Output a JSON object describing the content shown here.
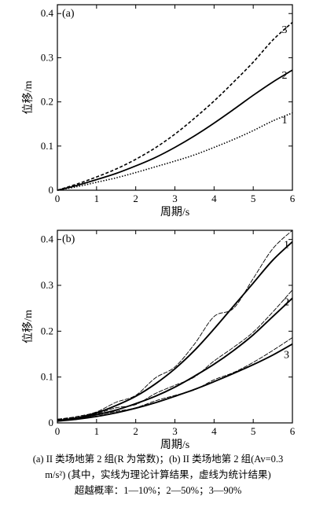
{
  "chart_data": [
    {
      "panel": "(a)",
      "type": "line",
      "xlabel": "周期/s",
      "ylabel": "位移/m",
      "xlim": [
        0,
        6
      ],
      "ylim": [
        0,
        0.42
      ],
      "xticks": [
        "0",
        "1",
        "2",
        "3",
        "4",
        "5",
        "6"
      ],
      "yticks": [
        "0",
        "0.1",
        "0.2",
        "0.3",
        "0.4"
      ],
      "grid": false,
      "series": [
        {
          "name": "1",
          "style": "dotted",
          "x": [
            0,
            0.5,
            1,
            1.5,
            2,
            2.5,
            3,
            3.5,
            4,
            4.5,
            5,
            5.5,
            6
          ],
          "y": [
            0,
            0.008,
            0.018,
            0.028,
            0.04,
            0.053,
            0.066,
            0.08,
            0.097,
            0.115,
            0.135,
            0.157,
            0.175
          ]
        },
        {
          "name": "2",
          "style": "solid",
          "x": [
            0,
            0.5,
            1,
            1.5,
            2,
            2.5,
            3,
            3.5,
            4,
            4.5,
            5,
            5.5,
            6
          ],
          "y": [
            0,
            0.011,
            0.024,
            0.038,
            0.055,
            0.074,
            0.097,
            0.123,
            0.152,
            0.183,
            0.215,
            0.245,
            0.272
          ]
        },
        {
          "name": "3",
          "style": "dashed",
          "x": [
            0,
            0.5,
            1,
            1.5,
            2,
            2.5,
            3,
            3.5,
            4,
            4.5,
            5,
            5.5,
            6
          ],
          "y": [
            0,
            0.014,
            0.03,
            0.048,
            0.07,
            0.096,
            0.127,
            0.163,
            0.202,
            0.245,
            0.29,
            0.34,
            0.38
          ]
        }
      ]
    },
    {
      "panel": "(b)",
      "type": "line",
      "xlabel": "周期/s",
      "ylabel": "位移/m",
      "xlim": [
        0,
        6
      ],
      "ylim": [
        0,
        0.42
      ],
      "xticks": [
        "0",
        "1",
        "2",
        "3",
        "4",
        "5",
        "6"
      ],
      "yticks": [
        "0",
        "0.1",
        "0.2",
        "0.3",
        "0.4"
      ],
      "grid": false,
      "series": [
        {
          "name": "1",
          "style": "solid",
          "x": [
            0,
            0.5,
            1,
            1.5,
            2,
            2.5,
            3,
            3.5,
            4,
            4.5,
            5,
            5.5,
            6
          ],
          "y": [
            0.005,
            0.011,
            0.022,
            0.038,
            0.058,
            0.085,
            0.118,
            0.158,
            0.205,
            0.255,
            0.305,
            0.355,
            0.395
          ]
        },
        {
          "name": "1",
          "style": "dashed",
          "x": [
            0,
            0.5,
            1,
            1.5,
            2,
            2.5,
            3,
            3.5,
            4,
            4.5,
            5,
            5.5,
            6
          ],
          "y": [
            0.008,
            0.014,
            0.024,
            0.045,
            0.06,
            0.098,
            0.122,
            0.172,
            0.232,
            0.25,
            0.315,
            0.38,
            0.42
          ]
        },
        {
          "name": "2",
          "style": "solid",
          "x": [
            0,
            0.5,
            1,
            1.5,
            2,
            2.5,
            3,
            3.5,
            4,
            4.5,
            5,
            5.5,
            6
          ],
          "y": [
            0.005,
            0.01,
            0.018,
            0.028,
            0.042,
            0.058,
            0.078,
            0.102,
            0.128,
            0.158,
            0.192,
            0.232,
            0.272
          ]
        },
        {
          "name": "2",
          "style": "dashed",
          "x": [
            0,
            0.5,
            1,
            1.5,
            2,
            2.5,
            3,
            3.5,
            4,
            4.5,
            5,
            5.5,
            6
          ],
          "y": [
            0.008,
            0.012,
            0.02,
            0.033,
            0.04,
            0.064,
            0.082,
            0.1,
            0.135,
            0.165,
            0.198,
            0.242,
            0.29
          ]
        },
        {
          "name": "3",
          "style": "solid",
          "x": [
            0,
            0.5,
            1,
            1.5,
            2,
            2.5,
            3,
            3.5,
            4,
            4.5,
            5,
            5.5,
            6
          ],
          "y": [
            0.004,
            0.008,
            0.014,
            0.022,
            0.032,
            0.044,
            0.058,
            0.073,
            0.09,
            0.108,
            0.127,
            0.148,
            0.172
          ]
        },
        {
          "name": "3",
          "style": "dashed",
          "x": [
            0,
            0.5,
            1,
            1.5,
            2,
            2.5,
            3,
            3.5,
            4,
            4.5,
            5,
            5.5,
            6
          ],
          "y": [
            0.007,
            0.011,
            0.017,
            0.025,
            0.033,
            0.048,
            0.06,
            0.072,
            0.094,
            0.11,
            0.132,
            0.158,
            0.186
          ]
        }
      ]
    }
  ],
  "caption": {
    "line1": "(a) II 类场地第 2 组(R 为常数)；(b) II 类场地第 2 组(Av=0.3",
    "line2": "m/s²) (其中，实线为理论计算结果，虚线为统计结果)",
    "line3": "超越概率：1—10%；2—50%；3—90%"
  }
}
